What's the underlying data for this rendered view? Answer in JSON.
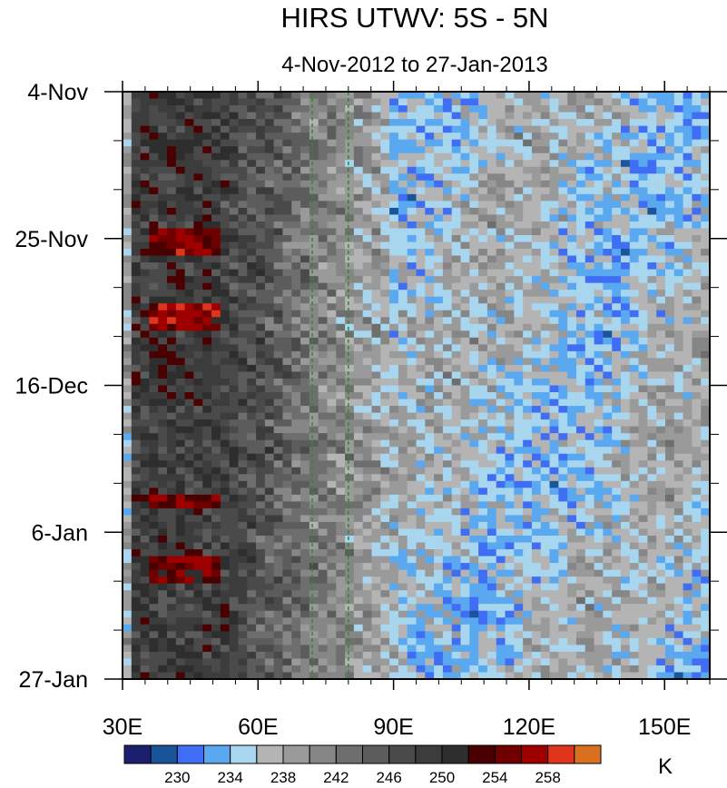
{
  "chart_data": {
    "type": "heatmap",
    "title": "HIRS UTWV: 5S - 5N",
    "subtitle": "4-Nov-2012 to 27-Jan-2013",
    "x_axis": {
      "range": [
        30,
        160
      ],
      "ticks": [
        {
          "value": 30,
          "label": "30E"
        },
        {
          "value": 60,
          "label": "60E"
        },
        {
          "value": 90,
          "label": "90E"
        },
        {
          "value": 120,
          "label": "120E"
        },
        {
          "value": 150,
          "label": "150E"
        }
      ]
    },
    "y_axis": {
      "range": [
        "2012-11-04",
        "2013-01-27"
      ],
      "ticks": [
        {
          "date": "2012-11-04",
          "label": "4-Nov"
        },
        {
          "date": "2012-11-25",
          "label": "25-Nov"
        },
        {
          "date": "2012-12-16",
          "label": "16-Dec"
        },
        {
          "date": "2013-01-06",
          "label": "6-Jan"
        },
        {
          "date": "2013-01-27",
          "label": "27-Jan"
        }
      ]
    },
    "reference_lines": [
      {
        "longitude": 72,
        "color": "#2e8b2e",
        "style": "dashed"
      },
      {
        "longitude": 80,
        "color": "#2e8b2e",
        "style": "dashed"
      }
    ],
    "colorbar": {
      "unit_label": "K",
      "levels": [
        228,
        230,
        232,
        234,
        236,
        238,
        240,
        242,
        244,
        246,
        248,
        250,
        252,
        254,
        256,
        258,
        260
      ],
      "colors": [
        "#1c1f6e",
        "#1a5499",
        "#3f6ef5",
        "#5aa8ef",
        "#a8d6ee",
        "#b4b4b4",
        "#9a9a9a",
        "#868686",
        "#6e6e6e",
        "#5c5c5c",
        "#4a4a4a",
        "#3c3c3c",
        "#2e2e2e",
        "#4a0000",
        "#700000",
        "#9e0000",
        "#e0341c",
        "#d87020"
      ],
      "labels": [
        {
          "value": 230,
          "label": "230"
        },
        {
          "value": 234,
          "label": "234"
        },
        {
          "value": 238,
          "label": "238"
        },
        {
          "value": 242,
          "label": "242"
        },
        {
          "value": 246,
          "label": "246"
        },
        {
          "value": 250,
          "label": "250"
        },
        {
          "value": 254,
          "label": "254"
        },
        {
          "value": 258,
          "label": "258"
        }
      ]
    },
    "grid": false
  }
}
